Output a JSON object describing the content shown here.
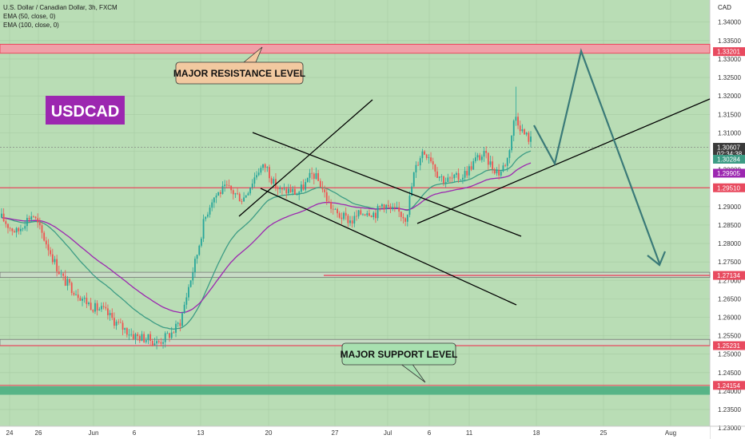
{
  "header": {
    "symbol_line": "U.S. Dollar / Canadian Dollar, 3h, FXCM",
    "ema50": "EMA (50, close, 0)",
    "ema100": "EMA (100, close, 0)",
    "currency": "CAD"
  },
  "colors": {
    "bull": "#26a69a",
    "bear": "#ef5350",
    "ema50": "#3d9c85",
    "ema100": "#9c27b0",
    "resistance": "#e84a5f",
    "support_zone": "#4caf82",
    "forecast": "#3a7a78",
    "badge": "#9c27b0",
    "resistance_callout": "#f2c9a0",
    "support_callout": "#a8e0b0"
  },
  "chart_data": {
    "type": "candlestick",
    "symbol": "USDCAD",
    "timeframe": "3h",
    "ylim": [
      1.227,
      1.346
    ],
    "y_ticks": [
      "1.34000",
      "1.33500",
      "1.33000",
      "1.32500",
      "1.32000",
      "1.31500",
      "1.31000",
      "1.30500",
      "1.30000",
      "1.29500",
      "1.29000",
      "1.28500",
      "1.28000",
      "1.27500",
      "1.27000",
      "1.26500",
      "1.26000",
      "1.25500",
      "1.25000",
      "1.24500",
      "1.24000",
      "1.23500",
      "1.23000"
    ],
    "x_ticks": [
      "24",
      "26",
      "Jun",
      "6",
      "13",
      "20",
      "27",
      "Jul",
      "6",
      "11",
      "18",
      "25",
      "Aug"
    ],
    "close_path": [
      1.287,
      1.2845,
      1.283,
      1.286,
      1.288,
      1.2835,
      1.279,
      1.274,
      1.27,
      1.268,
      1.266,
      1.264,
      1.2625,
      1.262,
      1.26,
      1.258,
      1.2565,
      1.255,
      1.2545,
      1.254,
      1.253,
      1.2545,
      1.256,
      1.259,
      1.268,
      1.276,
      1.286,
      1.292,
      1.294,
      1.295,
      1.2935,
      1.292,
      1.296,
      1.3,
      1.301,
      1.296,
      1.294,
      1.2945,
      1.2935,
      1.296,
      1.299,
      1.296,
      1.291,
      1.288,
      1.287,
      1.286,
      1.288,
      1.289,
      1.288,
      1.291,
      1.289,
      1.2885,
      1.287,
      1.299,
      1.305,
      1.304,
      1.299,
      1.297,
      1.2975,
      1.298,
      1.3,
      1.303,
      1.304,
      1.301,
      1.299,
      1.303,
      1.315,
      1.31,
      1.308
    ],
    "price_labels": [
      {
        "price": 1.33201,
        "text": "1.33201",
        "kind": "resistance"
      },
      {
        "price": 1.30607,
        "text": "1.30607",
        "kind": "last",
        "sub": "02:34:38"
      },
      {
        "price": 1.30284,
        "text": "1.30284",
        "kind": "ema50"
      },
      {
        "price": 1.29905,
        "text": "1.29905",
        "kind": "ema100"
      },
      {
        "price": 1.2951,
        "text": "1.29510",
        "kind": "resistance"
      },
      {
        "price": 1.27134,
        "text": "1.27134",
        "kind": "resistance"
      },
      {
        "price": 1.25231,
        "text": "1.25231",
        "kind": "resistance"
      },
      {
        "price": 1.24154,
        "text": "1.24154",
        "kind": "resistance"
      }
    ],
    "annotations": {
      "badge": "USDCAD",
      "resistance_label": "MAJOR RESISTANCE LEVEL",
      "support_label": "MAJOR SUPPORT LEVEL"
    }
  }
}
